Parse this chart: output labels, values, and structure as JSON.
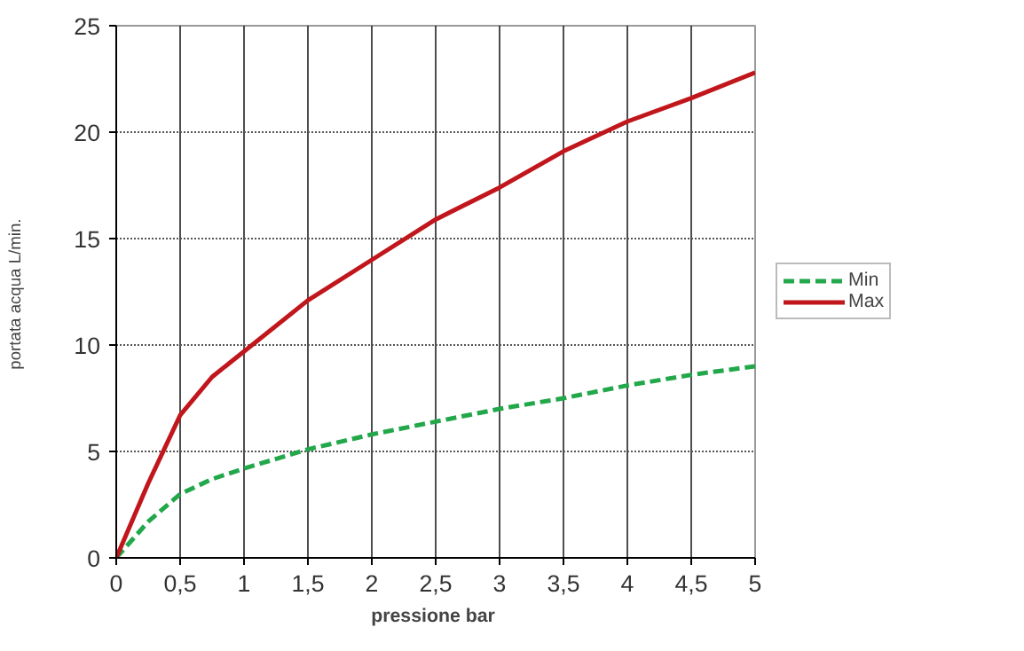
{
  "chart_data": {
    "type": "line",
    "xlabel": "pressione  bar",
    "ylabel": "portata acqua  L/min.",
    "x": [
      0,
      0.25,
      0.5,
      0.75,
      1,
      1.5,
      2,
      2.5,
      3,
      3.5,
      4,
      4.5,
      5
    ],
    "series": [
      {
        "name": "Min",
        "color": "#22a84a",
        "line_style": "dashed",
        "values": [
          0,
          1.7,
          3.0,
          3.7,
          4.2,
          5.1,
          5.8,
          6.4,
          7.0,
          7.5,
          8.1,
          8.6,
          9.0
        ]
      },
      {
        "name": "Max",
        "color": "#c0161c",
        "line_style": "solid",
        "values": [
          0,
          3.5,
          6.7,
          8.5,
          9.7,
          12.1,
          14.0,
          15.9,
          17.4,
          19.1,
          20.5,
          21.6,
          22.8
        ]
      }
    ],
    "xlim": [
      0,
      5
    ],
    "ylim": [
      0,
      25
    ],
    "xticks": [
      0,
      {
        "value": 0.5,
        "label": "0,5"
      },
      1,
      {
        "value": 1.5,
        "label": "1,5"
      },
      2,
      {
        "value": 2.5,
        "label": "2,5"
      },
      3,
      {
        "value": 3.5,
        "label": "3,5"
      },
      4,
      {
        "value": 4.5,
        "label": "4,5"
      },
      5
    ],
    "yticks": [
      0,
      5,
      10,
      15,
      20,
      25
    ],
    "grid": true,
    "legend": "right",
    "marker": "none"
  }
}
